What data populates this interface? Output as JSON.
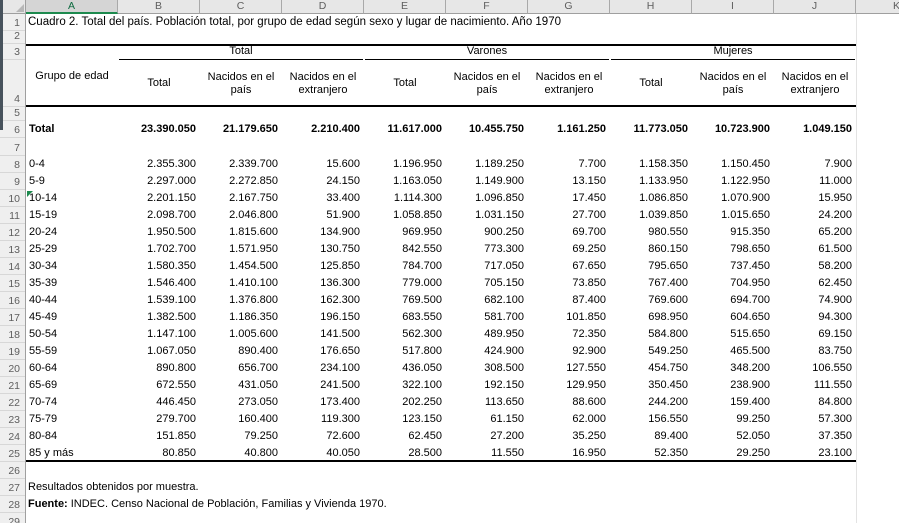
{
  "sheet": {
    "column_letters": [
      "A",
      "B",
      "C",
      "D",
      "E",
      "F",
      "G",
      "H",
      "I",
      "J",
      "K"
    ],
    "selected_column": "A",
    "row_numbers": [
      1,
      2,
      3,
      4,
      5,
      6,
      7,
      8,
      9,
      10,
      11,
      12,
      13,
      14,
      15,
      16,
      17,
      18,
      19,
      20,
      21,
      22,
      23,
      24,
      25,
      26,
      27,
      28,
      29
    ]
  },
  "title": "Cuadro 2. Total del país. Población total, por grupo de edad según sexo y lugar de nacimiento. Año 1970",
  "table": {
    "row_header_label": "Grupo de edad",
    "groups": [
      {
        "label": "Total",
        "subheaders": [
          "Total",
          "Nacidos en el país",
          "Nacidos en el extranjero"
        ]
      },
      {
        "label": "Varones",
        "subheaders": [
          "Total",
          "Nacidos en el país",
          "Nacidos en el extranjero"
        ]
      },
      {
        "label": "Mujeres",
        "subheaders": [
          "Total",
          "Nacidos en el país",
          "Nacidos en el extranjero"
        ]
      }
    ],
    "total_row": {
      "label": "Total",
      "values": [
        "23.390.050",
        "21.179.650",
        "2.210.400",
        "11.617.000",
        "10.455.750",
        "1.161.250",
        "11.773.050",
        "10.723.900",
        "1.049.150"
      ]
    },
    "rows": [
      {
        "label": "0-4",
        "values": [
          "2.355.300",
          "2.339.700",
          "15.600",
          "1.196.950",
          "1.189.250",
          "7.700",
          "1.158.350",
          "1.150.450",
          "7.900"
        ]
      },
      {
        "label": "5-9",
        "values": [
          "2.297.000",
          "2.272.850",
          "24.150",
          "1.163.050",
          "1.149.900",
          "13.150",
          "1.133.950",
          "1.122.950",
          "11.000"
        ]
      },
      {
        "label": "10-14",
        "values": [
          "2.201.150",
          "2.167.750",
          "33.400",
          "1.114.300",
          "1.096.850",
          "17.450",
          "1.086.850",
          "1.070.900",
          "15.950"
        ]
      },
      {
        "label": "15-19",
        "values": [
          "2.098.700",
          "2.046.800",
          "51.900",
          "1.058.850",
          "1.031.150",
          "27.700",
          "1.039.850",
          "1.015.650",
          "24.200"
        ]
      },
      {
        "label": "20-24",
        "values": [
          "1.950.500",
          "1.815.600",
          "134.900",
          "969.950",
          "900.250",
          "69.700",
          "980.550",
          "915.350",
          "65.200"
        ]
      },
      {
        "label": "25-29",
        "values": [
          "1.702.700",
          "1.571.950",
          "130.750",
          "842.550",
          "773.300",
          "69.250",
          "860.150",
          "798.650",
          "61.500"
        ]
      },
      {
        "label": "30-34",
        "values": [
          "1.580.350",
          "1.454.500",
          "125.850",
          "784.700",
          "717.050",
          "67.650",
          "795.650",
          "737.450",
          "58.200"
        ]
      },
      {
        "label": "35-39",
        "values": [
          "1.546.400",
          "1.410.100",
          "136.300",
          "779.000",
          "705.150",
          "73.850",
          "767.400",
          "704.950",
          "62.450"
        ]
      },
      {
        "label": "40-44",
        "values": [
          "1.539.100",
          "1.376.800",
          "162.300",
          "769.500",
          "682.100",
          "87.400",
          "769.600",
          "694.700",
          "74.900"
        ]
      },
      {
        "label": "45-49",
        "values": [
          "1.382.500",
          "1.186.350",
          "196.150",
          "683.550",
          "581.700",
          "101.850",
          "698.950",
          "604.650",
          "94.300"
        ]
      },
      {
        "label": "50-54",
        "values": [
          "1.147.100",
          "1.005.600",
          "141.500",
          "562.300",
          "489.950",
          "72.350",
          "584.800",
          "515.650",
          "69.150"
        ]
      },
      {
        "label": "55-59",
        "values": [
          "1.067.050",
          "890.400",
          "176.650",
          "517.800",
          "424.900",
          "92.900",
          "549.250",
          "465.500",
          "83.750"
        ]
      },
      {
        "label": "60-64",
        "values": [
          "890.800",
          "656.700",
          "234.100",
          "436.050",
          "308.500",
          "127.550",
          "454.750",
          "348.200",
          "106.550"
        ]
      },
      {
        "label": "65-69",
        "values": [
          "672.550",
          "431.050",
          "241.500",
          "322.100",
          "192.150",
          "129.950",
          "350.450",
          "238.900",
          "111.550"
        ]
      },
      {
        "label": "70-74",
        "values": [
          "446.450",
          "273.050",
          "173.400",
          "202.250",
          "113.650",
          "88.600",
          "244.200",
          "159.400",
          "84.800"
        ]
      },
      {
        "label": "75-79",
        "values": [
          "279.700",
          "160.400",
          "119.300",
          "123.150",
          "61.150",
          "62.000",
          "156.550",
          "99.250",
          "57.300"
        ]
      },
      {
        "label": "80-84",
        "values": [
          "151.850",
          "79.250",
          "72.600",
          "62.450",
          "27.200",
          "35.250",
          "89.400",
          "52.050",
          "37.350"
        ]
      },
      {
        "label": "85 y más",
        "values": [
          "80.850",
          "40.800",
          "40.050",
          "28.500",
          "11.550",
          "16.950",
          "52.350",
          "29.250",
          "23.100"
        ]
      }
    ],
    "error_indicator_row": "10-14"
  },
  "footnotes": {
    "note": "Resultados obtenidos por muestra.",
    "source_label": "Fuente:",
    "source_text": "INDEC. Censo Nacional de Población, Familias y Vivienda 1970."
  },
  "colors": {
    "accent_green": "#1d8a4e",
    "selected_header_text": "#0d6a3f",
    "header_bg": "#e7e7e7",
    "gutter_bg": "#efefef",
    "gridline": "#9f9f9f",
    "table_border": "#000000"
  }
}
